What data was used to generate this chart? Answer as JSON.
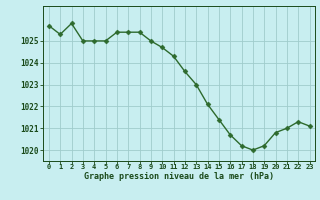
{
  "hours": [
    0,
    1,
    2,
    3,
    4,
    5,
    6,
    7,
    8,
    9,
    10,
    11,
    12,
    13,
    14,
    15,
    16,
    17,
    18,
    19,
    20,
    21,
    22,
    23
  ],
  "pressure": [
    1025.7,
    1025.3,
    1025.8,
    1025.0,
    1025.0,
    1025.0,
    1025.4,
    1025.4,
    1025.4,
    1025.0,
    1024.7,
    1024.3,
    1023.6,
    1023.0,
    1022.1,
    1021.4,
    1020.7,
    1020.2,
    1020.0,
    1020.2,
    1020.8,
    1021.0,
    1021.3,
    1021.1
  ],
  "line_color": "#2d6a2d",
  "marker_color": "#2d6a2d",
  "bg_color": "#c8eef0",
  "grid_color": "#a0cccc",
  "xlabel": "Graphe pression niveau de la mer (hPa)",
  "xlabel_color": "#1a4a1a",
  "tick_color": "#1a4a1a",
  "ylim_min": 1019.5,
  "ylim_max": 1026.6,
  "yticks": [
    1020,
    1021,
    1022,
    1023,
    1024,
    1025
  ],
  "xticks": [
    0,
    1,
    2,
    3,
    4,
    5,
    6,
    7,
    8,
    9,
    10,
    11,
    12,
    13,
    14,
    15,
    16,
    17,
    18,
    19,
    20,
    21,
    22,
    23
  ]
}
